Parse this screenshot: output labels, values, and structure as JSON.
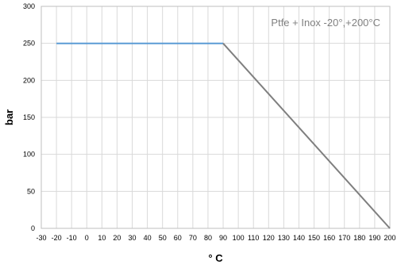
{
  "chart_data": {
    "type": "line",
    "xlabel": "° C",
    "ylabel": "bar",
    "annotation": "Ptfe + Inox -20°,+200°C",
    "xlim": [
      -30,
      200
    ],
    "ylim": [
      0,
      300
    ],
    "x_ticks": [
      -30,
      -20,
      -10,
      0,
      10,
      20,
      30,
      40,
      50,
      60,
      70,
      80,
      90,
      100,
      110,
      120,
      130,
      140,
      150,
      160,
      170,
      180,
      190,
      200
    ],
    "y_ticks": [
      0,
      50,
      100,
      150,
      200,
      250,
      300
    ],
    "grid": true,
    "series": [
      {
        "color": "#5b9bd5",
        "points": [
          [
            -20,
            250
          ],
          [
            90,
            250
          ]
        ]
      },
      {
        "color": "#7f7f7f",
        "points": [
          [
            90,
            250
          ],
          [
            200,
            0
          ]
        ]
      }
    ]
  }
}
